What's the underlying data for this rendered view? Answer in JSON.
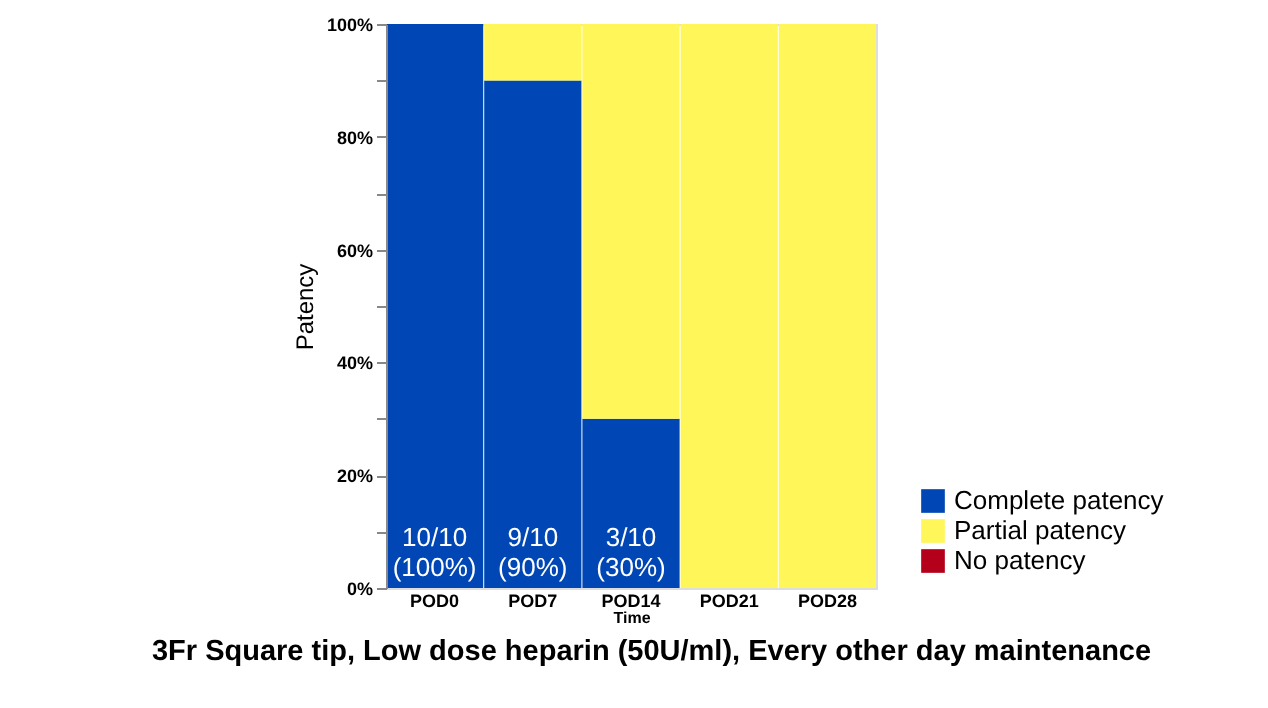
{
  "chart_data": {
    "type": "bar",
    "stacked": true,
    "xlabel": "Time",
    "ylabel": "Patency",
    "categories": [
      "POD0",
      "POD7",
      "POD14",
      "POD21",
      "POD28"
    ],
    "series": [
      {
        "name": "Complete patency",
        "color": "#0047b5",
        "values": [
          100,
          90,
          30,
          0,
          0
        ],
        "value_labels": [
          "10/10\n(100%)",
          "9/10\n(90%)",
          "3/10\n(30%)",
          null,
          null
        ]
      },
      {
        "name": "Partial patency",
        "color": "#fff75a",
        "values": [
          0,
          10,
          70,
          100,
          100
        ]
      },
      {
        "name": "No patency",
        "color": "#b5001c",
        "values": [
          0,
          0,
          0,
          0,
          0
        ]
      }
    ],
    "ylim": [
      0,
      100
    ],
    "yticks": [
      {
        "value": 0,
        "label": "0%"
      },
      {
        "value": 10,
        "label": null
      },
      {
        "value": 20,
        "label": "20%"
      },
      {
        "value": 30,
        "label": null
      },
      {
        "value": 40,
        "label": "40%"
      },
      {
        "value": 50,
        "label": null
      },
      {
        "value": 60,
        "label": "60%"
      },
      {
        "value": 70,
        "label": null
      },
      {
        "value": 80,
        "label": "80%"
      },
      {
        "value": 90,
        "label": null
      },
      {
        "value": 100,
        "label": "100%"
      }
    ],
    "grid": false,
    "legend": "bottom right",
    "annotations": [
      "3Fr Square tip, Low dose heparin (50U/ml), Every other day maintenance"
    ]
  }
}
